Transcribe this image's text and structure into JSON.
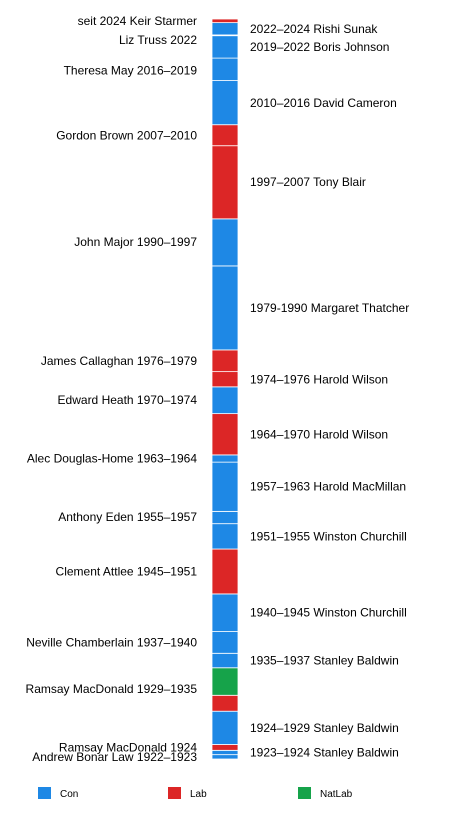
{
  "colors": {
    "Con": "#1e88e5",
    "Lab": "#dc2626",
    "NatLab": "#16a34a"
  },
  "legend": [
    {
      "party": "Con",
      "label": "Con"
    },
    {
      "party": "Lab",
      "label": "Lab"
    },
    {
      "party": "NatLab",
      "label": "NatLab"
    }
  ],
  "timeline": {
    "start_year": 1922.8,
    "end_year": 2025.0,
    "segments": [
      {
        "start": 1922.8,
        "end": 1923.4,
        "party": "Con"
      },
      {
        "start": 1923.4,
        "end": 1924.0,
        "party": "Con"
      },
      {
        "start": 1924.0,
        "end": 1924.8,
        "party": "Lab"
      },
      {
        "start": 1924.8,
        "end": 1929.4,
        "party": "Con"
      },
      {
        "start": 1929.4,
        "end": 1931.6,
        "party": "Lab"
      },
      {
        "start": 1931.6,
        "end": 1935.4,
        "party": "NatLab"
      },
      {
        "start": 1935.4,
        "end": 1937.4,
        "party": "Con"
      },
      {
        "start": 1937.4,
        "end": 1940.4,
        "party": "Con"
      },
      {
        "start": 1940.4,
        "end": 1945.6,
        "party": "Con"
      },
      {
        "start": 1945.6,
        "end": 1951.8,
        "party": "Lab"
      },
      {
        "start": 1951.8,
        "end": 1955.3,
        "party": "Con"
      },
      {
        "start": 1955.3,
        "end": 1957.0,
        "party": "Con"
      },
      {
        "start": 1957.0,
        "end": 1963.8,
        "party": "Con"
      },
      {
        "start": 1963.8,
        "end": 1964.8,
        "party": "Con"
      },
      {
        "start": 1964.8,
        "end": 1970.5,
        "party": "Lab"
      },
      {
        "start": 1970.5,
        "end": 1974.2,
        "party": "Con"
      },
      {
        "start": 1974.2,
        "end": 1976.3,
        "party": "Lab"
      },
      {
        "start": 1976.3,
        "end": 1979.3,
        "party": "Lab"
      },
      {
        "start": 1979.3,
        "end": 1990.9,
        "party": "Con"
      },
      {
        "start": 1990.9,
        "end": 1997.4,
        "party": "Con"
      },
      {
        "start": 1997.4,
        "end": 2007.5,
        "party": "Lab"
      },
      {
        "start": 2007.5,
        "end": 2010.4,
        "party": "Lab"
      },
      {
        "start": 2010.4,
        "end": 2016.5,
        "party": "Con"
      },
      {
        "start": 2016.5,
        "end": 2019.6,
        "party": "Con"
      },
      {
        "start": 2019.6,
        "end": 2022.7,
        "party": "Con"
      },
      {
        "start": 2022.7,
        "end": 2022.8,
        "party": "Con"
      },
      {
        "start": 2022.8,
        "end": 2024.5,
        "party": "Con"
      },
      {
        "start": 2024.5,
        "end": 2025.0,
        "party": "Lab"
      }
    ],
    "left_labels": [
      {
        "text": "seit 2024 Keir Starmer",
        "year": 2024.7
      },
      {
        "text": "Liz Truss 2022",
        "year": 2022.1
      },
      {
        "text": "Theresa May 2016–2019",
        "year": 2017.9
      },
      {
        "text": "Gordon Brown 2007–2010",
        "year": 2008.9
      },
      {
        "text": "John Major 1990–1997",
        "year": 1994.2
      },
      {
        "text": "James Callaghan 1976–1979",
        "year": 1977.8
      },
      {
        "text": "Edward Heath 1970–1974",
        "year": 1972.4
      },
      {
        "text": "Alec Douglas-Home 1963–1964",
        "year": 1964.3
      },
      {
        "text": "Anthony Eden 1955–1957",
        "year": 1956.2
      },
      {
        "text": "Clement Attlee 1945–1951",
        "year": 1948.7
      },
      {
        "text": "Neville Chamberlain 1937–1940",
        "year": 1938.9
      },
      {
        "text": "Ramsay MacDonald 1929–1935",
        "year": 1932.5
      },
      {
        "text": "Ramsay MacDonald 1924",
        "year": 1924.4
      },
      {
        "text": "Andrew Bonar Law 1922–1923",
        "year": 1923.1
      }
    ],
    "right_labels": [
      {
        "text": "2022–2024 Rishi Sunak",
        "year": 2023.6
      },
      {
        "text": "2019–2022 Boris Johnson",
        "year": 2021.1
      },
      {
        "text": "2010–2016 David Cameron",
        "year": 2013.4
      },
      {
        "text": "1997–2007 Tony Blair",
        "year": 2002.5
      },
      {
        "text": "1979-1990 Margaret Thatcher",
        "year": 1985.1
      },
      {
        "text": "1974–1976 Harold Wilson",
        "year": 1975.2
      },
      {
        "text": "1964–1970 Harold Wilson",
        "year": 1967.6
      },
      {
        "text": "1957–1963 Harold MacMillan",
        "year": 1960.4
      },
      {
        "text": "1951–1955 Winston Churchill",
        "year": 1953.5
      },
      {
        "text": "1940–1945 Winston Churchill",
        "year": 1943.0
      },
      {
        "text": "1935–1937 Stanley Baldwin",
        "year": 1936.4
      },
      {
        "text": "1924–1929 Stanley Baldwin",
        "year": 1927.1
      },
      {
        "text": "1923–1924 Stanley Baldwin",
        "year": 1923.7
      }
    ]
  }
}
